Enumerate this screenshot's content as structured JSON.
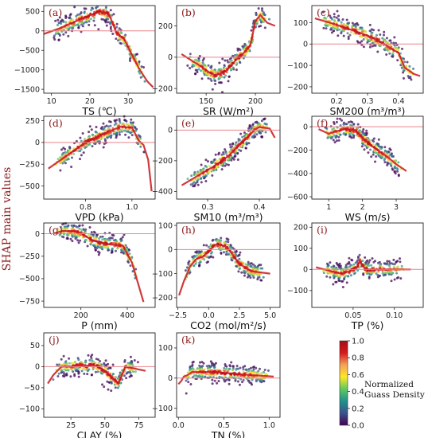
{
  "figure": {
    "shared_ylabel": "SHAP main values",
    "colorbar": {
      "title_lines": [
        "Normalized",
        "Guass Density"
      ],
      "ticks": [
        "1.0",
        "0.8",
        "0.6",
        "0.4",
        "0.2",
        "0.0"
      ],
      "colors": [
        "#440154",
        "#3b528b",
        "#21918c",
        "#5ec962",
        "#fde725",
        "#f4a259",
        "#d7191c",
        "#a50f15"
      ]
    }
  },
  "chart_data": [
    {
      "type": "scatter",
      "panel_label": "(a)",
      "xlabel": "TS (℃)",
      "xlim": [
        8,
        37
      ],
      "ylim": [
        -1600,
        650
      ],
      "xticks": [
        10,
        20,
        30
      ],
      "yticks": [
        500,
        0,
        -500,
        -1000,
        -1500
      ],
      "zero_line": true,
      "curve": [
        [
          8,
          -80
        ],
        [
          12,
          60
        ],
        [
          16,
          230
        ],
        [
          20,
          400
        ],
        [
          23,
          500
        ],
        [
          25,
          420
        ],
        [
          27,
          -60
        ],
        [
          29,
          -220
        ],
        [
          31,
          -620
        ],
        [
          33,
          -1000
        ],
        [
          35,
          -1300
        ],
        [
          36.5,
          -1450
        ]
      ]
    },
    {
      "type": "scatter",
      "panel_label": "(b)",
      "xlabel": "SR (W/m²)",
      "xlim": [
        120,
        225
      ],
      "ylim": [
        -230,
        330
      ],
      "xticks": [
        150,
        200
      ],
      "yticks": [
        200,
        0,
        -200
      ],
      "zero_line": true,
      "curve": [
        [
          125,
          20
        ],
        [
          135,
          -20
        ],
        [
          145,
          -60
        ],
        [
          155,
          -105
        ],
        [
          160,
          -115
        ],
        [
          170,
          -90
        ],
        [
          180,
          -20
        ],
        [
          190,
          40
        ],
        [
          195,
          80
        ],
        [
          200,
          230
        ],
        [
          205,
          270
        ],
        [
          212,
          220
        ],
        [
          220,
          200
        ]
      ]
    },
    {
      "type": "scatter",
      "panel_label": "(c)",
      "xlabel": "SM200 (m³/m³)",
      "xlim": [
        0.12,
        0.48
      ],
      "ylim": [
        -230,
        180
      ],
      "xticks": [
        0.2,
        0.3,
        0.4
      ],
      "yticks": [
        100,
        0,
        -100,
        -200
      ],
      "zero_line": true,
      "curve": [
        [
          0.13,
          120
        ],
        [
          0.2,
          90
        ],
        [
          0.26,
          60
        ],
        [
          0.3,
          40
        ],
        [
          0.35,
          5
        ],
        [
          0.38,
          -25
        ],
        [
          0.4,
          -40
        ],
        [
          0.42,
          -110
        ],
        [
          0.45,
          -140
        ],
        [
          0.47,
          -150
        ]
      ]
    },
    {
      "type": "scatter",
      "panel_label": "(d)",
      "xlabel": "VPD (kPa)",
      "xlim": [
        0.62,
        1.1
      ],
      "ylim": [
        -650,
        300
      ],
      "xticks": [
        0.8,
        1.0
      ],
      "yticks": [
        250,
        0,
        -250,
        -500
      ],
      "zero_line": true,
      "curve": [
        [
          0.64,
          -300
        ],
        [
          0.72,
          -150
        ],
        [
          0.8,
          0
        ],
        [
          0.88,
          100
        ],
        [
          0.95,
          180
        ],
        [
          1.0,
          170
        ],
        [
          1.03,
          20
        ],
        [
          1.05,
          -30
        ],
        [
          1.07,
          -200
        ],
        [
          1.085,
          -560
        ]
      ]
    },
    {
      "type": "scatter",
      "panel_label": "(e)",
      "xlabel": "SM10 (m³/m³)",
      "xlim": [
        0.24,
        0.44
      ],
      "ylim": [
        -450,
        90
      ],
      "xticks": [
        0.3,
        0.4
      ],
      "yticks": [
        0,
        -200,
        -400
      ],
      "zero_line": true,
      "curve": [
        [
          0.25,
          -360
        ],
        [
          0.28,
          -300
        ],
        [
          0.31,
          -240
        ],
        [
          0.34,
          -170
        ],
        [
          0.36,
          -100
        ],
        [
          0.38,
          -40
        ],
        [
          0.39,
          0
        ],
        [
          0.4,
          20
        ],
        [
          0.42,
          10
        ],
        [
          0.43,
          -50
        ]
      ]
    },
    {
      "type": "scatter",
      "panel_label": "(f)",
      "xlabel": "WS (m/s)",
      "xlim": [
        0.5,
        3.8
      ],
      "ylim": [
        -620,
        90
      ],
      "xticks": [
        1,
        2,
        3
      ],
      "yticks": [
        0,
        -200,
        -400,
        -600
      ],
      "zero_line": true,
      "curve": [
        [
          0.7,
          -20
        ],
        [
          1.0,
          -60
        ],
        [
          1.2,
          -40
        ],
        [
          1.5,
          -20
        ],
        [
          1.8,
          -30
        ],
        [
          2.0,
          -100
        ],
        [
          2.3,
          -170
        ],
        [
          2.7,
          -250
        ],
        [
          3.0,
          -320
        ],
        [
          3.3,
          -380
        ]
      ]
    },
    {
      "type": "scatter",
      "panel_label": "(g)",
      "xlabel": "P (mm)",
      "xlim": [
        40,
        520
      ],
      "ylim": [
        -820,
        120
      ],
      "xticks": [
        200,
        400
      ],
      "yticks": [
        0,
        -250,
        -500,
        -750
      ],
      "zero_line": true,
      "curve": [
        [
          80,
          0
        ],
        [
          120,
          30
        ],
        [
          160,
          30
        ],
        [
          200,
          10
        ],
        [
          240,
          -60
        ],
        [
          280,
          -100
        ],
        [
          330,
          -120
        ],
        [
          380,
          -130
        ],
        [
          420,
          -320
        ],
        [
          470,
          -760
        ]
      ]
    },
    {
      "type": "scatter",
      "panel_label": "(h)",
      "xlabel": "CO2 (mol/m²/s)",
      "xlim": [
        -2.6,
        5.8
      ],
      "ylim": [
        -240,
        110
      ],
      "xticks": [
        -2.5,
        0.0,
        2.5,
        5.0
      ],
      "yticks": [
        100,
        0,
        -100,
        -200
      ],
      "zero_line": true,
      "curve": [
        [
          -2.4,
          -190
        ],
        [
          -2.0,
          -130
        ],
        [
          -1.5,
          -70
        ],
        [
          -1.0,
          -40
        ],
        [
          -0.5,
          -30
        ],
        [
          0,
          -10
        ],
        [
          0.5,
          20
        ],
        [
          1.0,
          20
        ],
        [
          1.5,
          10
        ],
        [
          2.5,
          -60
        ],
        [
          3.5,
          -90
        ],
        [
          5.0,
          -100
        ]
      ]
    },
    {
      "type": "scatter",
      "panel_label": "(i)",
      "xlabel": "TP (%)",
      "xlim": [
        0.0,
        0.135
      ],
      "ylim": [
        -180,
        220
      ],
      "xticks": [
        0.05,
        0.1
      ],
      "yticks": [
        200,
        100,
        0,
        -100
      ],
      "zero_line": true,
      "curve": [
        [
          0.005,
          10
        ],
        [
          0.015,
          0
        ],
        [
          0.025,
          -10
        ],
        [
          0.035,
          -20
        ],
        [
          0.045,
          -10
        ],
        [
          0.055,
          10
        ],
        [
          0.058,
          40
        ],
        [
          0.065,
          0
        ],
        [
          0.09,
          0
        ],
        [
          0.12,
          0
        ]
      ]
    },
    {
      "type": "scatter",
      "panel_label": "(j)",
      "xlabel": "CLAY (%)",
      "xlim": [
        5,
        87
      ],
      "ylim": [
        -120,
        80
      ],
      "xticks": [
        25,
        50,
        75
      ],
      "yticks": [
        50,
        0,
        -50,
        -100
      ],
      "zero_line": true,
      "curve": [
        [
          8,
          -40
        ],
        [
          12,
          -20
        ],
        [
          18,
          0
        ],
        [
          25,
          0
        ],
        [
          30,
          5
        ],
        [
          35,
          0
        ],
        [
          40,
          5
        ],
        [
          45,
          0
        ],
        [
          50,
          -10
        ],
        [
          55,
          -25
        ],
        [
          60,
          -40
        ],
        [
          65,
          0
        ],
        [
          80,
          -10
        ]
      ]
    },
    {
      "type": "scatter",
      "panel_label": "(k)",
      "xlabel": "TN (%)",
      "xlim": [
        -0.02,
        1.12
      ],
      "ylim": [
        -130,
        150
      ],
      "xticks": [
        0.0,
        0.5,
        1.0
      ],
      "yticks": [
        100,
        0,
        -100
      ],
      "zero_line": true,
      "curve": [
        [
          0.0,
          -20
        ],
        [
          0.03,
          -10
        ],
        [
          0.06,
          5
        ],
        [
          0.1,
          10
        ],
        [
          0.15,
          20
        ],
        [
          0.25,
          20
        ],
        [
          0.4,
          20
        ],
        [
          0.6,
          15
        ],
        [
          0.8,
          10
        ],
        [
          1.05,
          5
        ]
      ]
    }
  ]
}
